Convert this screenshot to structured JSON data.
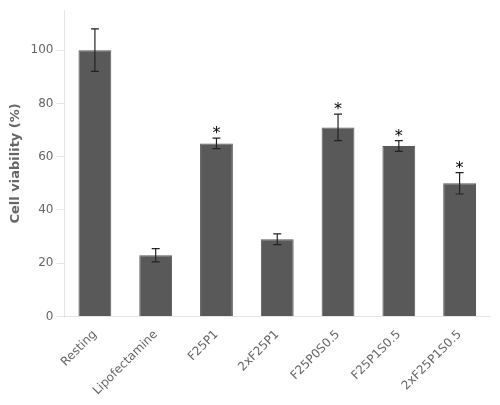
{
  "chart_data": {
    "type": "bar",
    "categories": [
      "Resting",
      "Lipofectamine",
      "F25P1",
      "2xF25P1",
      "F25P0S0.5",
      "F25P1S0.5",
      "2xF25P1S0.5"
    ],
    "values": [
      100,
      23,
      65,
      29,
      71,
      64,
      50
    ],
    "errors": [
      8,
      2.5,
      2,
      2,
      5,
      2,
      4
    ],
    "color": "#595959",
    "ylabel": "Cell viability (%)",
    "ylim": [
      0,
      115
    ],
    "yticks": [
      0,
      20,
      40,
      60,
      80,
      100
    ],
    "annotations": [
      {
        "category": "F25P1",
        "text": "*"
      },
      {
        "category": "F25P0S0.5",
        "text": "*"
      },
      {
        "category": "F25P1S0.5",
        "text": "*"
      },
      {
        "category": "2xF25P1S0.5",
        "text": "*"
      }
    ],
    "grid": false
  }
}
